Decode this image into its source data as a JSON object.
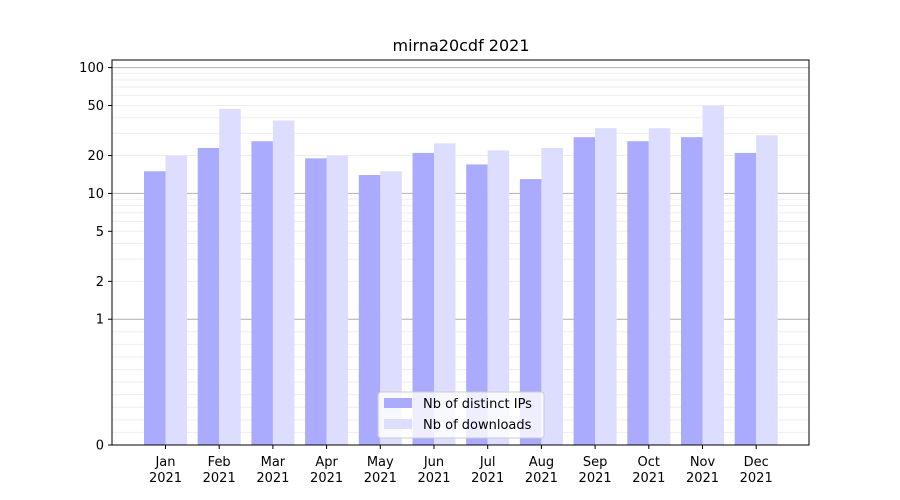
{
  "chart_data": {
    "type": "bar",
    "title": "mirna20cdf 2021",
    "xlabel": "",
    "ylabel": "",
    "y_scale": "symlog",
    "y_ticks": [
      0,
      1,
      2,
      5,
      10,
      20,
      50,
      100
    ],
    "y_tick_labels": [
      "0",
      "1",
      "2",
      "5",
      "10",
      "20",
      "50",
      "100"
    ],
    "categories": [
      [
        "Jan",
        "2021"
      ],
      [
        "Feb",
        "2021"
      ],
      [
        "Mar",
        "2021"
      ],
      [
        "Apr",
        "2021"
      ],
      [
        "May",
        "2021"
      ],
      [
        "Jun",
        "2021"
      ],
      [
        "Jul",
        "2021"
      ],
      [
        "Aug",
        "2021"
      ],
      [
        "Sep",
        "2021"
      ],
      [
        "Oct",
        "2021"
      ],
      [
        "Nov",
        "2021"
      ],
      [
        "Dec",
        "2021"
      ]
    ],
    "series": [
      {
        "name": "Nb of distinct IPs",
        "color": "#aaaaff",
        "values": [
          15,
          23,
          26,
          19,
          14,
          21,
          17,
          13,
          28,
          26,
          28,
          21
        ]
      },
      {
        "name": "Nb of downloads",
        "color": "#ddddff",
        "values": [
          20,
          47,
          38,
          20,
          15,
          25,
          22,
          23,
          33,
          33,
          50,
          29
        ]
      }
    ],
    "legend_position": "lower center",
    "grid": true
  }
}
